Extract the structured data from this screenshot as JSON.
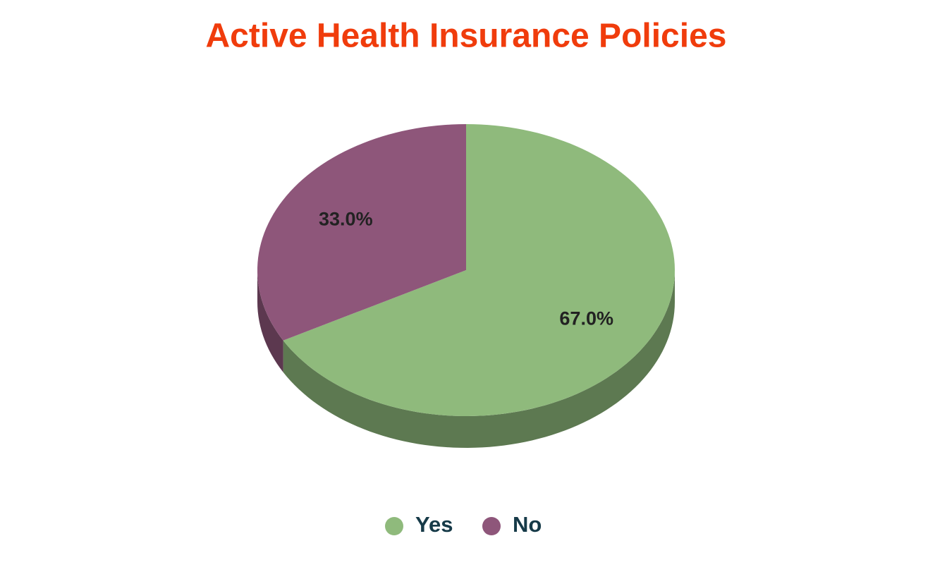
{
  "chart_data": {
    "type": "pie",
    "title": "Active Health Insurance Policies",
    "categories": [
      "Yes",
      "No"
    ],
    "values": [
      67,
      33
    ],
    "value_labels": [
      "67.0%",
      "33.0%"
    ],
    "colors": [
      "#8fba7c",
      "#8e567a"
    ]
  }
}
